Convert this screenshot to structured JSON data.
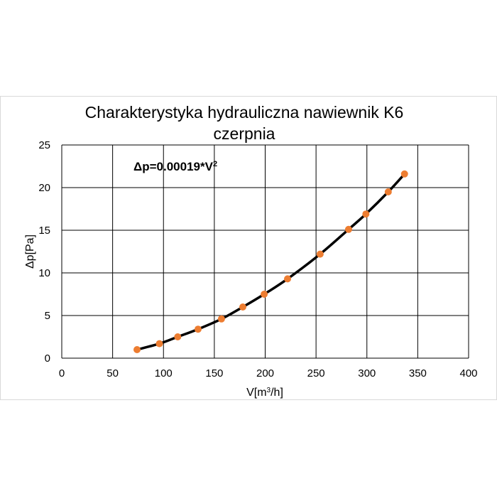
{
  "chart_data": {
    "type": "scatter",
    "title_lines": [
      "Charakterystyka hydrauliczna nawiewnik K6",
      "czerpnia"
    ],
    "xlabel_prefix": "V[m",
    "xlabel_sup": "3",
    "xlabel_suffix": "/h]",
    "ylabel": "Δp[Pa]",
    "annotation_prefix": "Δp=0.00019*V",
    "annotation_sup": "2",
    "xlim": [
      0,
      400
    ],
    "ylim": [
      0,
      25
    ],
    "xticks": [
      0,
      50,
      100,
      150,
      200,
      250,
      300,
      350,
      400
    ],
    "yticks": [
      0,
      5,
      10,
      15,
      20,
      25
    ],
    "grid": true,
    "series": [
      {
        "x": [
          74,
          96,
          114,
          134,
          157,
          178,
          199,
          222,
          254,
          282,
          299,
          321,
          337
        ],
        "y": [
          1.0,
          1.7,
          2.5,
          3.4,
          4.6,
          6.0,
          7.5,
          9.3,
          12.2,
          15.1,
          16.9,
          19.5,
          21.6
        ],
        "marker_color": "#ed7d31",
        "line_color": "#000000"
      }
    ],
    "fit_coefficient": 0.00019
  }
}
